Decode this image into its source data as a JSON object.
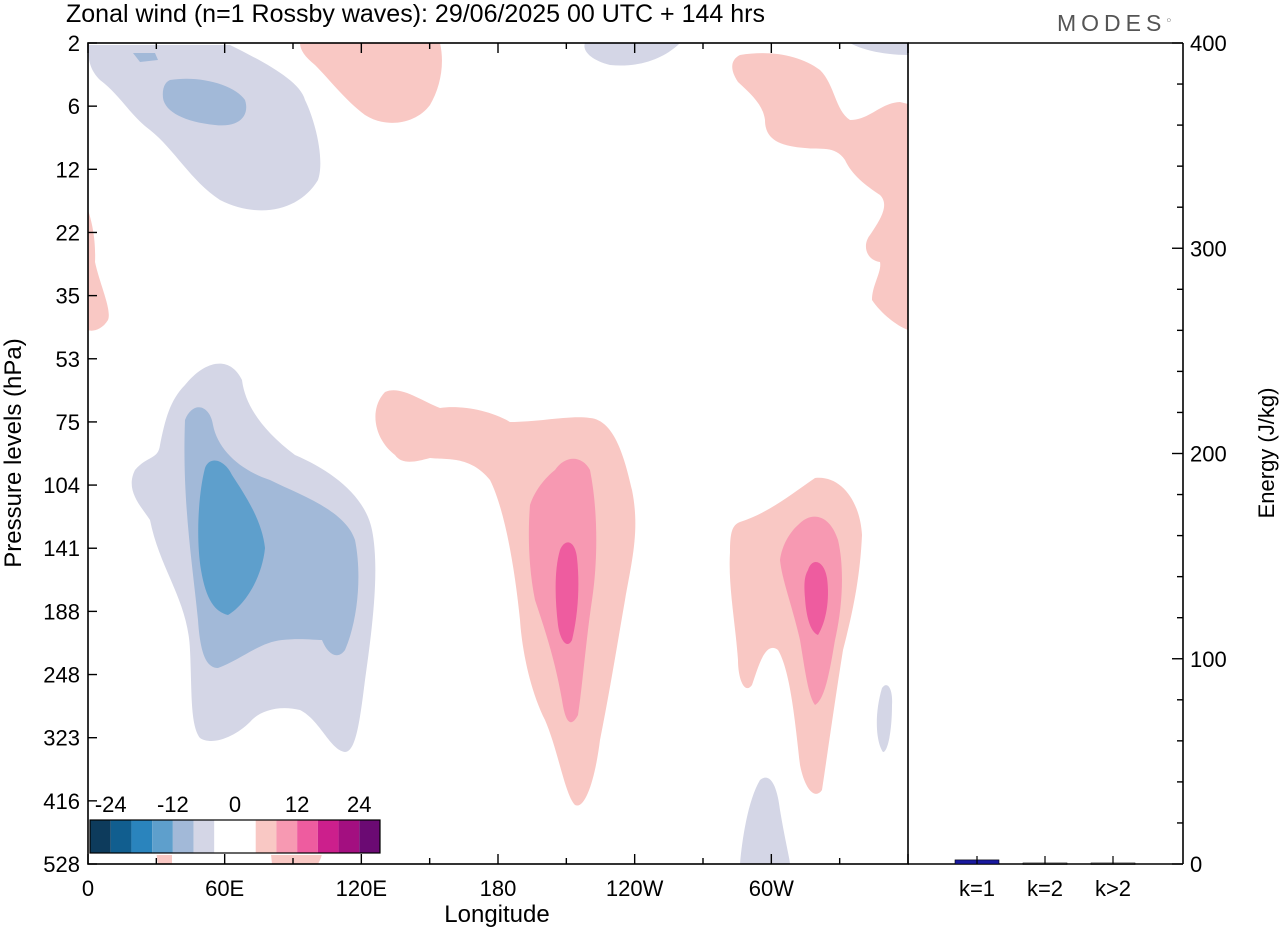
{
  "header": {
    "title": "Zonal wind (n=1 Rossby waves):  29/06/2025  00 UTC  + 144 hrs",
    "brand": "MODES"
  },
  "chart_data": [
    {
      "type": "heatmap",
      "title": "Zonal wind (n=1 Rossby waves):  29/06/2025  00 UTC  + 144 hrs",
      "xlabel": "Longitude",
      "ylabel": "Pressure levels (hPa)",
      "x_ticks": [
        "0",
        "60E",
        "120E",
        "180",
        "120W",
        "60W"
      ],
      "x_tick_degrees": [
        0,
        60,
        120,
        180,
        240,
        300
      ],
      "xlim_degrees": [
        0,
        360
      ],
      "y_ticks": [
        "2",
        "6",
        "12",
        "22",
        "35",
        "53",
        "75",
        "104",
        "141",
        "188",
        "248",
        "323",
        "416",
        "528"
      ],
      "y_scale": "pressure levels, top to bottom",
      "colorbar": {
        "labels": [
          "-24",
          "-12",
          "0",
          "12",
          "24"
        ],
        "colors": [
          "#0d3b5c",
          "#115e8f",
          "#2a84bd",
          "#5e9fcc",
          "#a2b9d8",
          "#d4d6e6",
          "#ffffff",
          "#ffffff",
          "#f9c8c4",
          "#f799b2",
          "#ee5c9f",
          "#cc1f8c",
          "#a30f80",
          "#6b0a73"
        ],
        "position": "bottom-left"
      },
      "features": [
        {
          "sign": "negative",
          "peak_level": 5,
          "lon_center": 34
        },
        {
          "sign": "negative",
          "peak_level": 141,
          "lon_center": 58
        },
        {
          "sign": "positive",
          "peak_level": 2,
          "lon_center": 120
        },
        {
          "sign": "positive",
          "peak_level": 12,
          "lon_center": 345
        },
        {
          "sign": "positive",
          "peak_level": 170,
          "lon_center": 210
        },
        {
          "sign": "positive",
          "peak_level": 170,
          "lon_center": 318
        }
      ]
    },
    {
      "type": "bar",
      "ylabel": "Energy (J/kg)",
      "categories": [
        "k=1",
        "k=2",
        "k>2"
      ],
      "values": [
        2,
        0.5,
        0.5
      ],
      "ylim": [
        0,
        400
      ],
      "y_ticks": [
        "0",
        "100",
        "200",
        "300",
        "400"
      ],
      "colors": [
        "#1a1aa0",
        "#333333",
        "#333333"
      ]
    }
  ]
}
